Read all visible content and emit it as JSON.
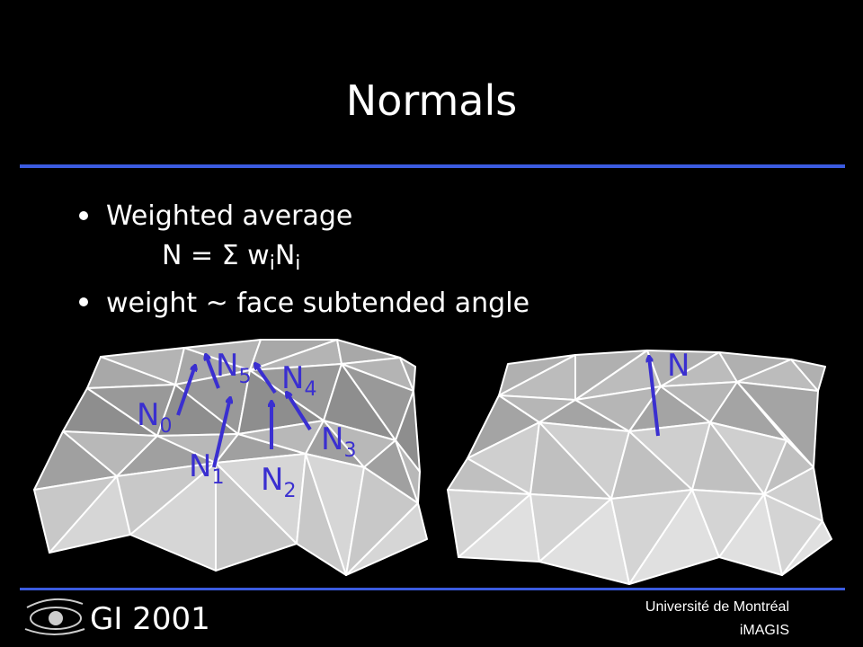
{
  "slide": {
    "title": "Normals",
    "bullets": [
      {
        "text": "Weighted average",
        "formula": [
          "N = Σ w",
          "i",
          "N",
          "i"
        ]
      },
      {
        "text": "weight ~ face subtended angle"
      }
    ],
    "left_labels": [
      {
        "text": "N",
        "sub": "0"
      },
      {
        "text": "N",
        "sub": "1"
      },
      {
        "text": "N",
        "sub": "2"
      },
      {
        "text": "N",
        "sub": "3"
      },
      {
        "text": "N",
        "sub": "4"
      },
      {
        "text": "N",
        "sub": "5"
      }
    ],
    "right_label": "N",
    "footer": {
      "conference": "GI 2001",
      "university": "Université de Montréal",
      "lab": "iMAGIS"
    }
  }
}
